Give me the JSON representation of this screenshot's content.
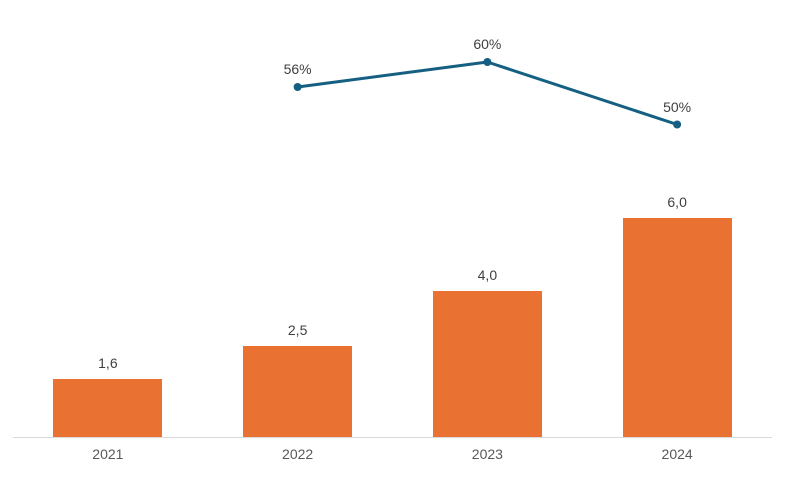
{
  "chart_data": {
    "type": "combo",
    "categories": [
      "2021",
      "2022",
      "2023",
      "2024"
    ],
    "series": [
      {
        "name": "bar-series",
        "type": "bar",
        "values": [
          1.6,
          2.5,
          4.0,
          6.0
        ],
        "data_labels": [
          "1,6",
          "2,5",
          "4,0",
          "6,0"
        ],
        "color": "#E97132"
      },
      {
        "name": "line-series",
        "type": "line",
        "values": [
          null,
          56,
          60,
          50
        ],
        "data_labels": [
          "",
          "56%",
          "60%",
          "50%"
        ],
        "color": "#156082",
        "marker": "circle"
      }
    ],
    "title": "",
    "xlabel": "",
    "ylabel": "",
    "bar_axis_range": [
      0,
      6
    ],
    "line_axis_range_pct": [
      0,
      70
    ],
    "grid": false,
    "legend": false,
    "decimal_separator": ","
  },
  "colors": {
    "bar_fill": "#E97132",
    "line_stroke": "#156082",
    "data_label_text": "#404040",
    "axis_label_text": "#595959",
    "axis_line": "#D9D9D9",
    "background": "#FFFFFF"
  }
}
